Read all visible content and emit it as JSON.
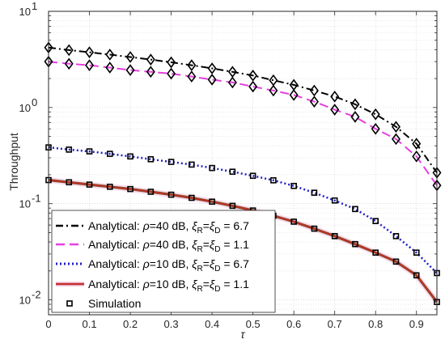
{
  "chart_data": {
    "type": "line",
    "title": "",
    "xlabel": "τ",
    "ylabel": "Throughput",
    "y_scale": "log",
    "xlim": [
      0,
      0.95
    ],
    "ylim": [
      0.007,
      10
    ],
    "grid": true,
    "minor_grid": true,
    "legend_placement": "bottom-left",
    "x_ticks": [
      "0",
      "0.1",
      "0.2",
      "0.3",
      "0.4",
      "0.5",
      "0.6",
      "0.7",
      "0.8",
      "0.9"
    ],
    "y_ticks": [
      {
        "value": 0.01,
        "base": "10",
        "exp": "-2"
      },
      {
        "value": 0.1,
        "base": "10",
        "exp": "-1"
      },
      {
        "value": 1,
        "base": "10",
        "exp": "0"
      },
      {
        "value": 10,
        "base": "10",
        "exp": "1"
      }
    ],
    "x": [
      0,
      0.05,
      0.1,
      0.15,
      0.2,
      0.25,
      0.3,
      0.35,
      0.4,
      0.45,
      0.5,
      0.55,
      0.6,
      0.65,
      0.7,
      0.75,
      0.8,
      0.85,
      0.9,
      0.95
    ],
    "series": [
      {
        "legend": {
          "prefix": "Analytical: ",
          "rho": "ρ",
          "rho_rest": "=40 dB, ",
          "xi": "ξ",
          "sub_r": "R",
          "eq": "=",
          "sub_d": "D",
          "value": " = 6.7"
        },
        "color": "#000000",
        "dash": "9,4,2,4",
        "width": 2,
        "marker": "diamond",
        "values": [
          4.2,
          3.95,
          3.75,
          3.55,
          3.35,
          3.15,
          2.95,
          2.75,
          2.55,
          2.35,
          2.15,
          1.92,
          1.72,
          1.5,
          1.3,
          1.08,
          0.85,
          0.63,
          0.42,
          0.21
        ]
      },
      {
        "legend": {
          "prefix": "Analytical: ",
          "rho": "ρ",
          "rho_rest": "=40 dB, ",
          "xi": "ξ",
          "sub_r": "R",
          "eq": "=",
          "sub_d": "D",
          "value": " = 1.1"
        },
        "color": "#E63FE0",
        "dash": "11,6",
        "width": 2,
        "marker": "diamond",
        "values": [
          3.0,
          2.85,
          2.75,
          2.6,
          2.45,
          2.35,
          2.25,
          2.1,
          1.95,
          1.82,
          1.65,
          1.5,
          1.35,
          1.15,
          0.95,
          0.8,
          0.6,
          0.47,
          0.31,
          0.155
        ]
      },
      {
        "legend": {
          "prefix": "Analytical: ",
          "rho": "ρ",
          "rho_rest": "=10 dB, ",
          "xi": "ξ",
          "sub_r": "R",
          "eq": "=",
          "sub_d": "D",
          "value": " = 6.7"
        },
        "color": "#1F1FC8",
        "dash": "2,3",
        "width": 2.5,
        "marker": "square",
        "values": [
          0.385,
          0.365,
          0.35,
          0.33,
          0.31,
          0.29,
          0.272,
          0.255,
          0.235,
          0.215,
          0.195,
          0.175,
          0.153,
          0.13,
          0.108,
          0.088,
          0.066,
          0.046,
          0.031,
          0.019
        ]
      },
      {
        "legend": {
          "prefix": "Analytical: ",
          "rho": "ρ",
          "rho_rest": "=10 dB, ",
          "xi": "ξ",
          "sub_r": "R",
          "eq": "=",
          "sub_d": "D",
          "value": " = 1.1"
        },
        "color": "#C0302A",
        "dash": "",
        "width": 2,
        "marker": "square",
        "values": [
          0.176,
          0.167,
          0.158,
          0.15,
          0.142,
          0.133,
          0.124,
          0.115,
          0.105,
          0.095,
          0.085,
          0.075,
          0.065,
          0.055,
          0.046,
          0.038,
          0.031,
          0.025,
          0.018,
          0.0095
        ]
      }
    ],
    "simulation_legend": "Simulation"
  }
}
